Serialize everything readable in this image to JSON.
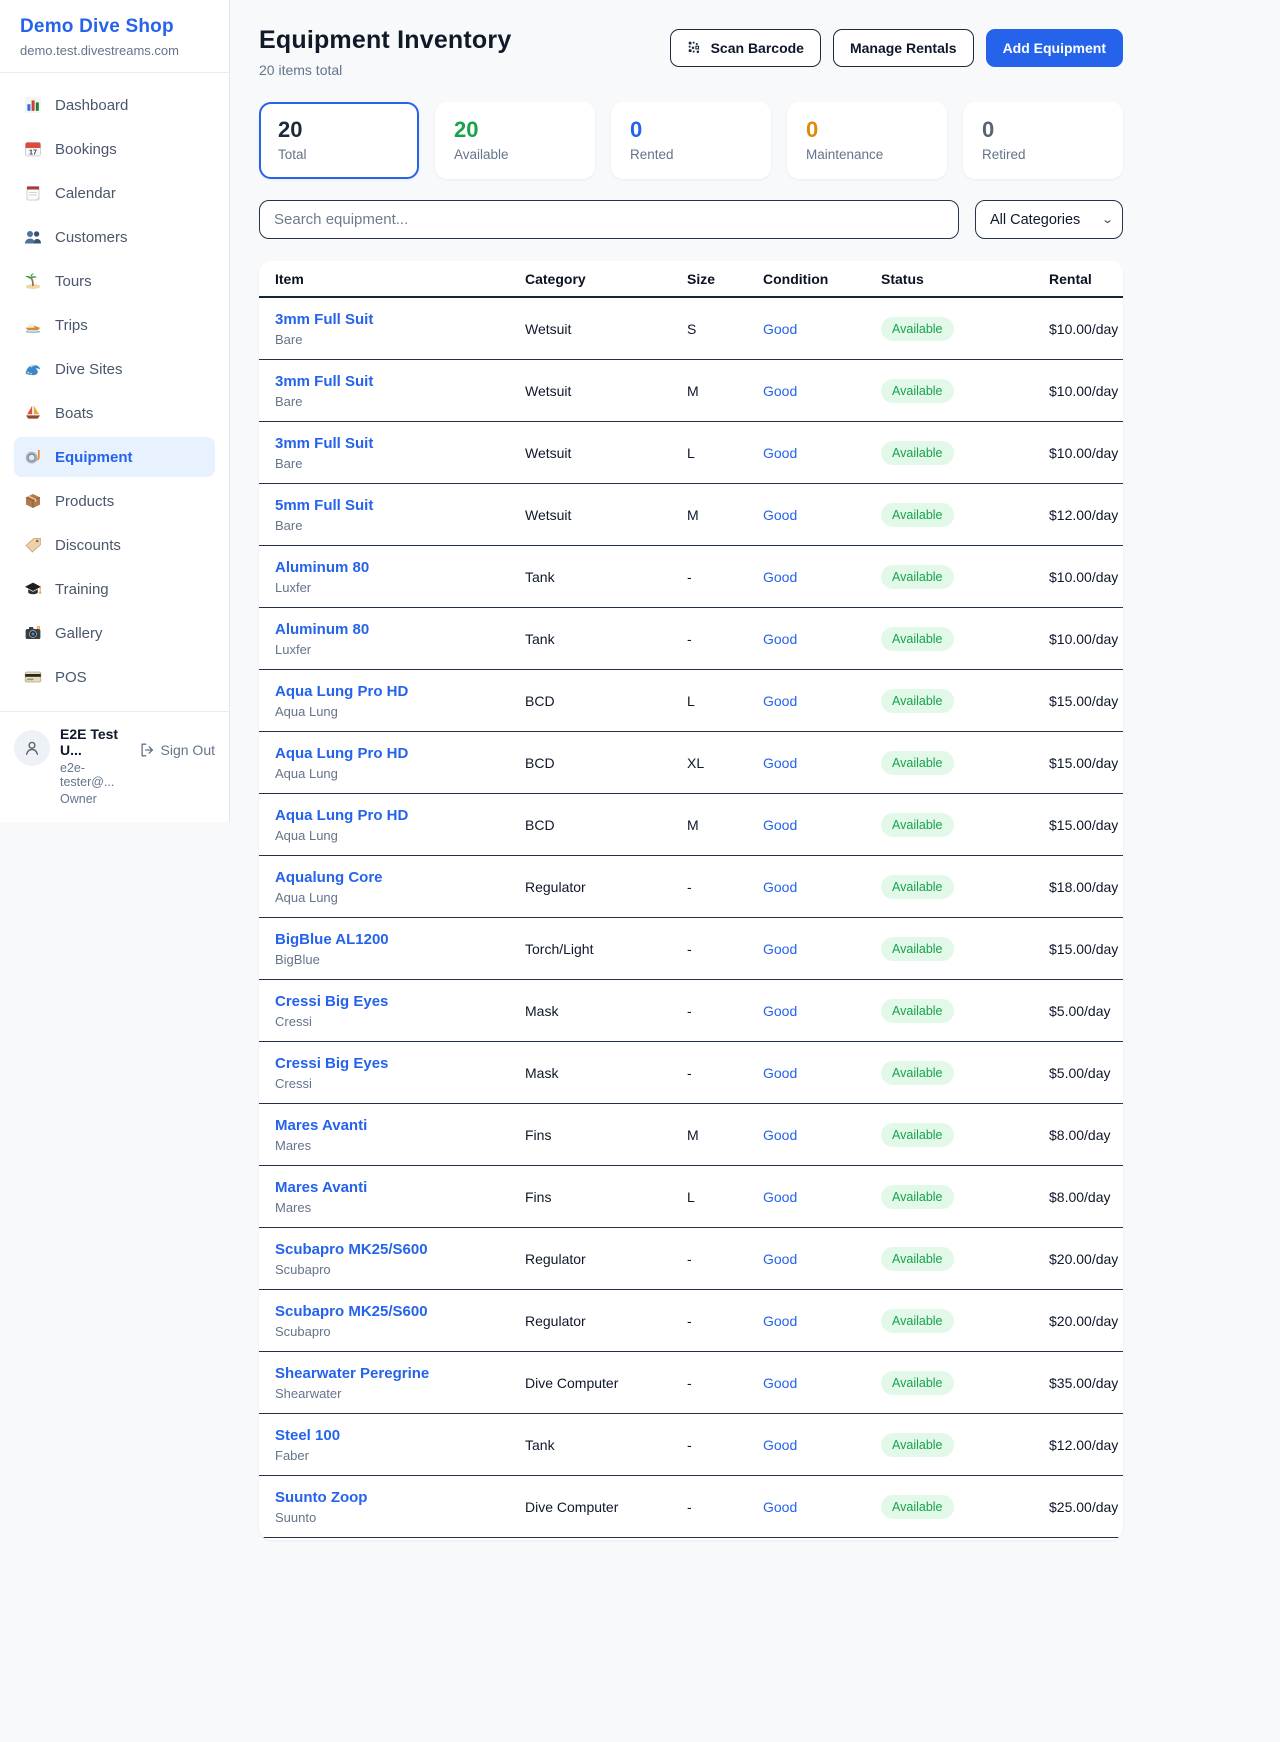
{
  "sidebar": {
    "brand": "Demo Dive Shop",
    "domain": "demo.test.divestreams.com",
    "items": [
      {
        "label": "Dashboard",
        "icon": "bar-chart-icon"
      },
      {
        "label": "Bookings",
        "icon": "calendar-date-icon"
      },
      {
        "label": "Calendar",
        "icon": "notepad-calendar-icon"
      },
      {
        "label": "Customers",
        "icon": "people-icon"
      },
      {
        "label": "Tours",
        "icon": "palm-island-icon"
      },
      {
        "label": "Trips",
        "icon": "speedboat-icon"
      },
      {
        "label": "Dive Sites",
        "icon": "wave-icon"
      },
      {
        "label": "Boats",
        "icon": "sailboat-icon"
      },
      {
        "label": "Equipment",
        "icon": "dive-mask-icon",
        "active": true
      },
      {
        "label": "Products",
        "icon": "package-icon"
      },
      {
        "label": "Discounts",
        "icon": "tag-icon"
      },
      {
        "label": "Training",
        "icon": "graduation-cap-icon"
      },
      {
        "label": "Gallery",
        "icon": "camera-icon"
      },
      {
        "label": "POS",
        "icon": "credit-card-icon"
      }
    ],
    "user": {
      "name": "E2E Test U...",
      "email": "e2e-tester@...",
      "role": "Owner",
      "sign_out_label": "Sign Out"
    }
  },
  "header": {
    "title": "Equipment Inventory",
    "subtitle": "20 items total",
    "scan_barcode_label": "Scan Barcode",
    "manage_rentals_label": "Manage Rentals",
    "add_equipment_label": "Add Equipment"
  },
  "stats": [
    {
      "value": "20",
      "label": "Total",
      "color": "#1e293b",
      "selected": true
    },
    {
      "value": "20",
      "label": "Available",
      "color": "#17a34a"
    },
    {
      "value": "0",
      "label": "Rented",
      "color": "#2563eb"
    },
    {
      "value": "0",
      "label": "Maintenance",
      "color": "#e08a0c"
    },
    {
      "value": "0",
      "label": "Retired",
      "color": "#5b6472"
    }
  ],
  "filters": {
    "search_placeholder": "Search equipment...",
    "category_selected": "All Categories"
  },
  "table": {
    "columns": [
      "Item",
      "Category",
      "Size",
      "Condition",
      "Status",
      "Rental"
    ],
    "rows": [
      {
        "name": "3mm Full Suit",
        "brand": "Bare",
        "category": "Wetsuit",
        "size": "S",
        "condition": "Good",
        "status": "Available",
        "rental": "$10.00/day"
      },
      {
        "name": "3mm Full Suit",
        "brand": "Bare",
        "category": "Wetsuit",
        "size": "M",
        "condition": "Good",
        "status": "Available",
        "rental": "$10.00/day"
      },
      {
        "name": "3mm Full Suit",
        "brand": "Bare",
        "category": "Wetsuit",
        "size": "L",
        "condition": "Good",
        "status": "Available",
        "rental": "$10.00/day"
      },
      {
        "name": "5mm Full Suit",
        "brand": "Bare",
        "category": "Wetsuit",
        "size": "M",
        "condition": "Good",
        "status": "Available",
        "rental": "$12.00/day"
      },
      {
        "name": "Aluminum 80",
        "brand": "Luxfer",
        "category": "Tank",
        "size": "-",
        "condition": "Good",
        "status": "Available",
        "rental": "$10.00/day"
      },
      {
        "name": "Aluminum 80",
        "brand": "Luxfer",
        "category": "Tank",
        "size": "-",
        "condition": "Good",
        "status": "Available",
        "rental": "$10.00/day"
      },
      {
        "name": "Aqua Lung Pro HD",
        "brand": "Aqua Lung",
        "category": "BCD",
        "size": "L",
        "condition": "Good",
        "status": "Available",
        "rental": "$15.00/day"
      },
      {
        "name": "Aqua Lung Pro HD",
        "brand": "Aqua Lung",
        "category": "BCD",
        "size": "XL",
        "condition": "Good",
        "status": "Available",
        "rental": "$15.00/day"
      },
      {
        "name": "Aqua Lung Pro HD",
        "brand": "Aqua Lung",
        "category": "BCD",
        "size": "M",
        "condition": "Good",
        "status": "Available",
        "rental": "$15.00/day"
      },
      {
        "name": "Aqualung Core",
        "brand": "Aqua Lung",
        "category": "Regulator",
        "size": "-",
        "condition": "Good",
        "status": "Available",
        "rental": "$18.00/day"
      },
      {
        "name": "BigBlue AL1200",
        "brand": "BigBlue",
        "category": "Torch/Light",
        "size": "-",
        "condition": "Good",
        "status": "Available",
        "rental": "$15.00/day"
      },
      {
        "name": "Cressi Big Eyes",
        "brand": "Cressi",
        "category": "Mask",
        "size": "-",
        "condition": "Good",
        "status": "Available",
        "rental": "$5.00/day"
      },
      {
        "name": "Cressi Big Eyes",
        "brand": "Cressi",
        "category": "Mask",
        "size": "-",
        "condition": "Good",
        "status": "Available",
        "rental": "$5.00/day"
      },
      {
        "name": "Mares Avanti",
        "brand": "Mares",
        "category": "Fins",
        "size": "M",
        "condition": "Good",
        "status": "Available",
        "rental": "$8.00/day"
      },
      {
        "name": "Mares Avanti",
        "brand": "Mares",
        "category": "Fins",
        "size": "L",
        "condition": "Good",
        "status": "Available",
        "rental": "$8.00/day"
      },
      {
        "name": "Scubapro MK25/S600",
        "brand": "Scubapro",
        "category": "Regulator",
        "size": "-",
        "condition": "Good",
        "status": "Available",
        "rental": "$20.00/day"
      },
      {
        "name": "Scubapro MK25/S600",
        "brand": "Scubapro",
        "category": "Regulator",
        "size": "-",
        "condition": "Good",
        "status": "Available",
        "rental": "$20.00/day"
      },
      {
        "name": "Shearwater Peregrine",
        "brand": "Shearwater",
        "category": "Dive Computer",
        "size": "-",
        "condition": "Good",
        "status": "Available",
        "rental": "$35.00/day"
      },
      {
        "name": "Steel 100",
        "brand": "Faber",
        "category": "Tank",
        "size": "-",
        "condition": "Good",
        "status": "Available",
        "rental": "$12.00/day"
      },
      {
        "name": "Suunto Zoop",
        "brand": "Suunto",
        "category": "Dive Computer",
        "size": "-",
        "condition": "Good",
        "status": "Available",
        "rental": "$25.00/day"
      }
    ]
  }
}
